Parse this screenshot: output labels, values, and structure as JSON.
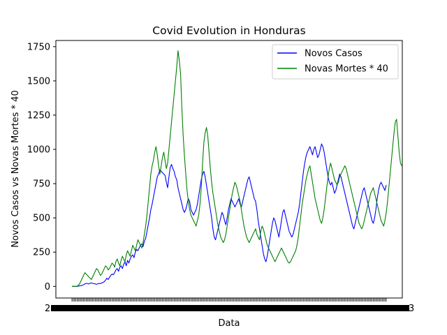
{
  "chart_data": {
    "type": "line",
    "title": "Covid Evolution in Honduras",
    "xlabel": "Data",
    "ylabel": "Novos Casos vs Novas Mortes * 40",
    "ylim": [
      -85,
      1795
    ],
    "y_ticks": [
      0,
      250,
      500,
      750,
      1000,
      1250,
      1500,
      1750
    ],
    "y_tick_labels": [
      "0",
      "250",
      "500",
      "750",
      "1000",
      "1250",
      "1500",
      "1750"
    ],
    "x_tick_label_edges": [
      "2",
      "3"
    ],
    "legend_position": "upper right",
    "grid": false,
    "series": [
      {
        "name": "Novos Casos",
        "color": "#0000ff",
        "values": [
          0,
          0,
          0,
          0,
          0,
          2,
          5,
          5,
          8,
          12,
          18,
          22,
          20,
          18,
          22,
          25,
          22,
          20,
          18,
          15,
          18,
          22,
          20,
          25,
          28,
          35,
          45,
          60,
          50,
          65,
          80,
          90,
          85,
          100,
          120,
          130,
          110,
          140,
          150,
          130,
          160,
          180,
          150,
          190,
          170,
          200,
          220,
          230,
          210,
          250,
          270,
          260,
          280,
          300,
          310,
          290,
          330,
          350,
          400,
          450,
          500,
          560,
          600,
          650,
          700,
          750,
          800,
          820,
          850,
          840,
          830,
          820,
          810,
          760,
          720,
          800,
          870,
          890,
          860,
          840,
          800,
          780,
          720,
          680,
          640,
          600,
          560,
          540,
          560,
          600,
          640,
          620,
          560,
          540,
          520,
          540,
          560,
          600,
          660,
          720,
          780,
          820,
          840,
          800,
          740,
          680,
          620,
          560,
          500,
          420,
          360,
          340,
          380,
          420,
          460,
          500,
          540,
          520,
          480,
          450,
          500,
          560,
          600,
          640,
          620,
          600,
          580,
          600,
          620,
          640,
          600,
          580,
          620,
          660,
          700,
          740,
          780,
          800,
          760,
          720,
          680,
          640,
          620,
          560,
          480,
          420,
          360,
          300,
          240,
          200,
          180,
          220,
          280,
          340,
          400,
          460,
          500,
          480,
          440,
          400,
          360,
          420,
          480,
          540,
          560,
          520,
          480,
          440,
          400,
          380,
          360,
          380,
          420,
          460,
          500,
          540,
          600,
          680,
          760,
          840,
          900,
          950,
          980,
          1000,
          1020,
          990,
          960,
          1000,
          1020,
          980,
          940,
          960,
          1000,
          1040,
          1020,
          980,
          920,
          860,
          800,
          760,
          740,
          760,
          720,
          680,
          700,
          740,
          780,
          820,
          800,
          760,
          720,
          680,
          640,
          600,
          560,
          520,
          480,
          440,
          420,
          460,
          500,
          540,
          580,
          620,
          660,
          700,
          720,
          680,
          640,
          600,
          560,
          520,
          480,
          460,
          500,
          560,
          640,
          700,
          740,
          760,
          740,
          720,
          700,
          740
        ]
      },
      {
        "name": "Novas Mortes * 40",
        "color": "#008000",
        "values": [
          0,
          0,
          0,
          0,
          0,
          10,
          20,
          40,
          60,
          80,
          100,
          90,
          80,
          70,
          60,
          50,
          70,
          90,
          110,
          130,
          120,
          100,
          80,
          90,
          110,
          130,
          150,
          140,
          120,
          130,
          150,
          170,
          160,
          140,
          180,
          200,
          170,
          150,
          190,
          220,
          200,
          180,
          230,
          260,
          240,
          220,
          260,
          300,
          280,
          260,
          300,
          340,
          320,
          300,
          280,
          320,
          380,
          440,
          520,
          620,
          720,
          820,
          880,
          920,
          980,
          1020,
          960,
          880,
          820,
          880,
          940,
          980,
          920,
          860,
          900,
          1000,
          1100,
          1200,
          1300,
          1400,
          1500,
          1600,
          1720,
          1650,
          1550,
          1300,
          1100,
          950,
          820,
          700,
          620,
          560,
          520,
          500,
          480,
          460,
          440,
          480,
          520,
          600,
          720,
          900,
          1050,
          1120,
          1160,
          1100,
          980,
          860,
          760,
          680,
          620,
          560,
          500,
          440,
          400,
          360,
          340,
          320,
          340,
          380,
          440,
          500,
          560,
          620,
          680,
          720,
          760,
          740,
          700,
          660,
          620,
          560,
          500,
          440,
          400,
          360,
          340,
          320,
          340,
          360,
          380,
          400,
          420,
          380,
          360,
          340,
          400,
          440,
          420,
          380,
          340,
          300,
          280,
          260,
          240,
          220,
          200,
          180,
          200,
          220,
          240,
          260,
          280,
          260,
          240,
          220,
          200,
          180,
          170,
          180,
          200,
          220,
          240,
          260,
          300,
          360,
          440,
          520,
          600,
          660,
          720,
          780,
          820,
          860,
          880,
          820,
          760,
          700,
          640,
          600,
          560,
          520,
          480,
          460,
          500,
          560,
          640,
          720,
          800,
          860,
          900,
          860,
          820,
          780,
          760,
          740,
          760,
          800,
          820,
          840,
          860,
          880,
          860,
          820,
          780,
          740,
          700,
          660,
          620,
          580,
          540,
          500,
          460,
          440,
          420,
          440,
          480,
          520,
          560,
          600,
          640,
          680,
          700,
          720,
          680,
          640,
          600,
          560,
          520,
          480,
          460,
          440,
          480,
          540,
          620,
          720,
          820,
          920,
          1020,
          1120,
          1200,
          1220,
          1100,
          980,
          900,
          880
        ]
      }
    ]
  }
}
